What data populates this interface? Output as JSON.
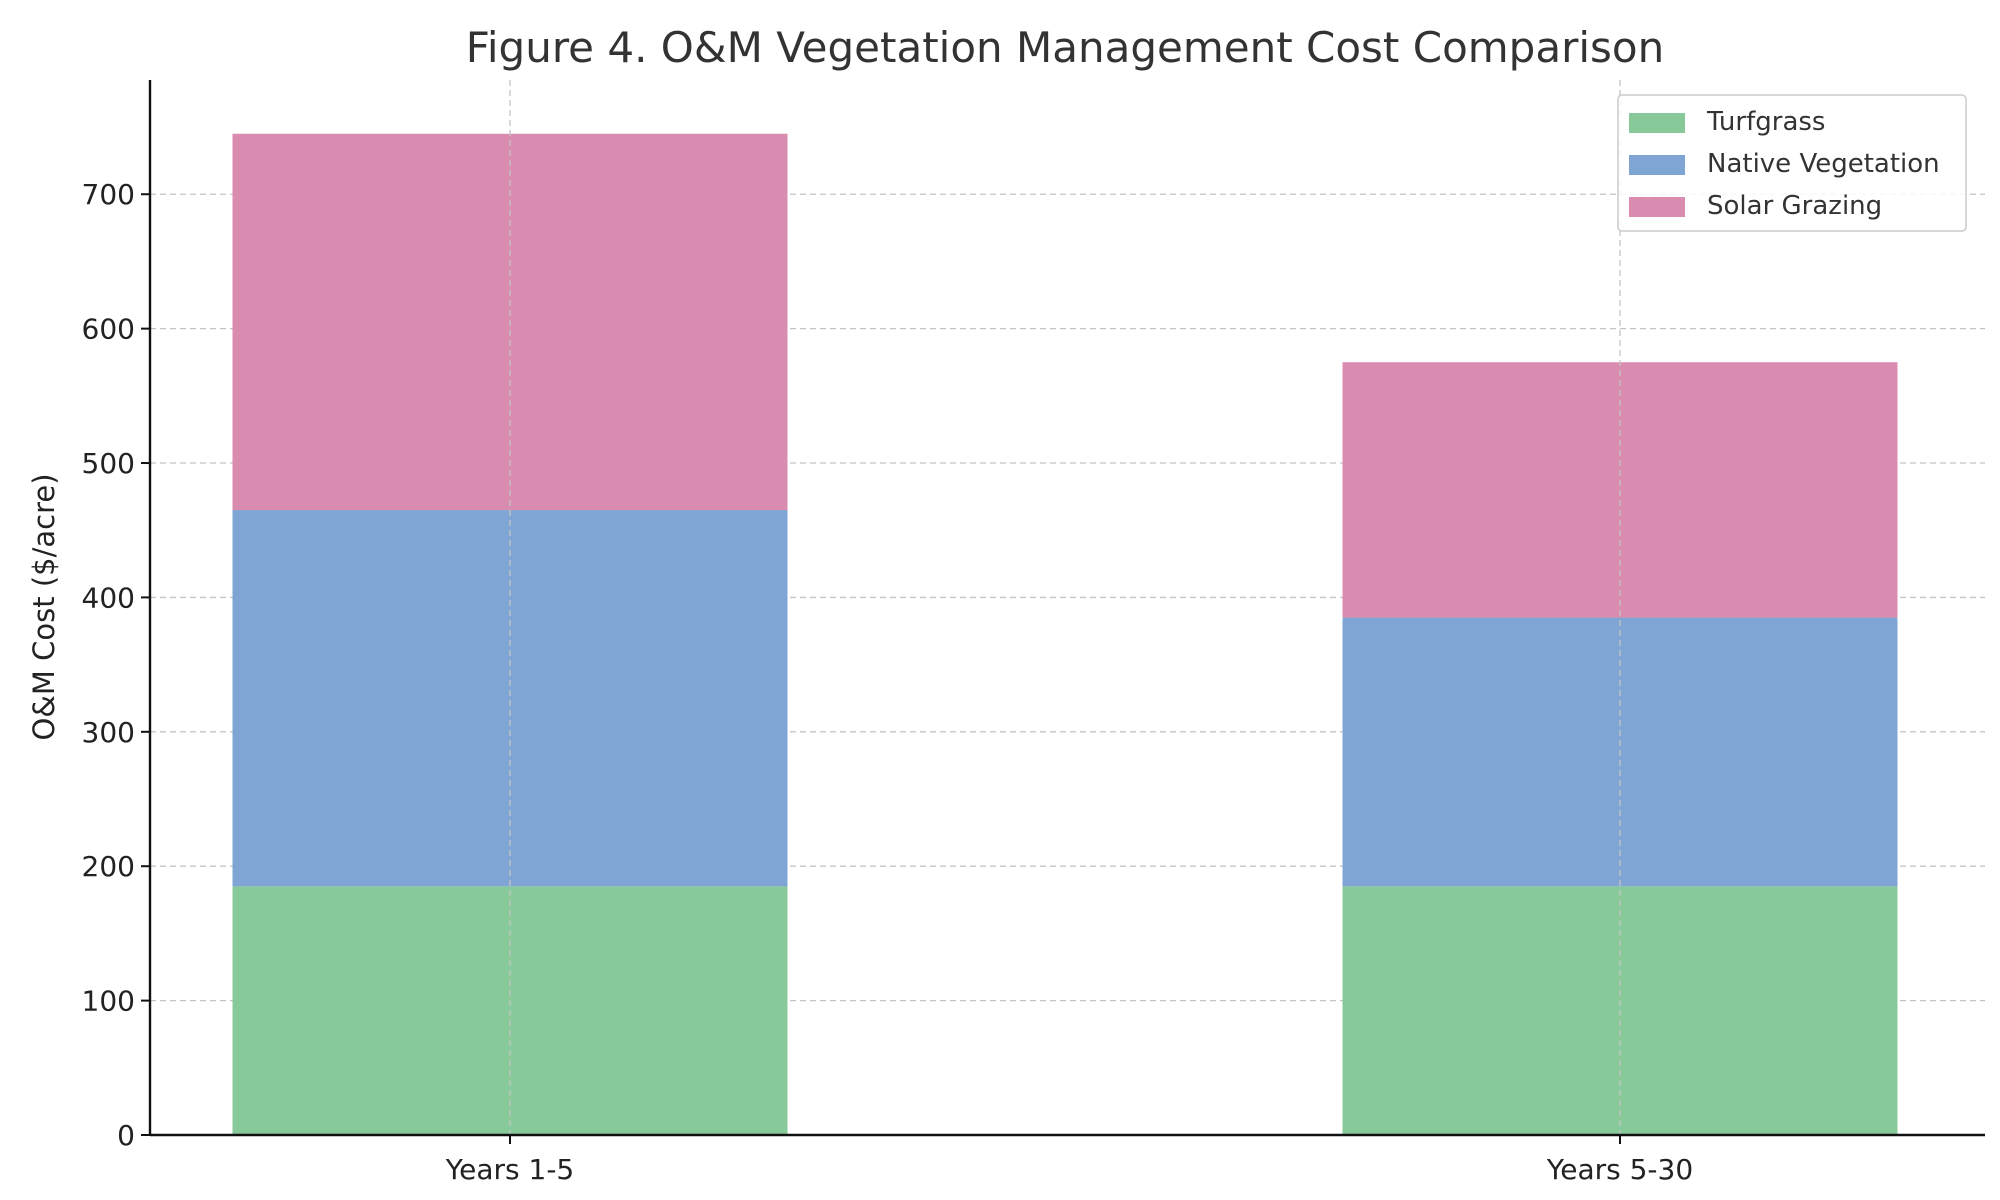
{
  "chart_data": {
    "type": "bar",
    "stacked": true,
    "title": "Figure 4. O&M Vegetation Management Cost Comparison",
    "xlabel": "",
    "ylabel": "O&M Cost ($/acre)",
    "categories": [
      "Years 1-5",
      "Years 5-30"
    ],
    "series": [
      {
        "name": "Turfgrass",
        "values": [
          185,
          185
        ],
        "color": "#88c999"
      },
      {
        "name": "Native Vegetation",
        "values": [
          280,
          200
        ],
        "color": "#7ea5d3"
      },
      {
        "name": "Solar Grazing",
        "values": [
          280,
          190
        ],
        "color": "#d98caf"
      }
    ],
    "ylim": [
      0,
      785
    ],
    "yticks": [
      0,
      100,
      200,
      300,
      400,
      500,
      600,
      700
    ],
    "grid": true,
    "legend_position": "top-right"
  }
}
